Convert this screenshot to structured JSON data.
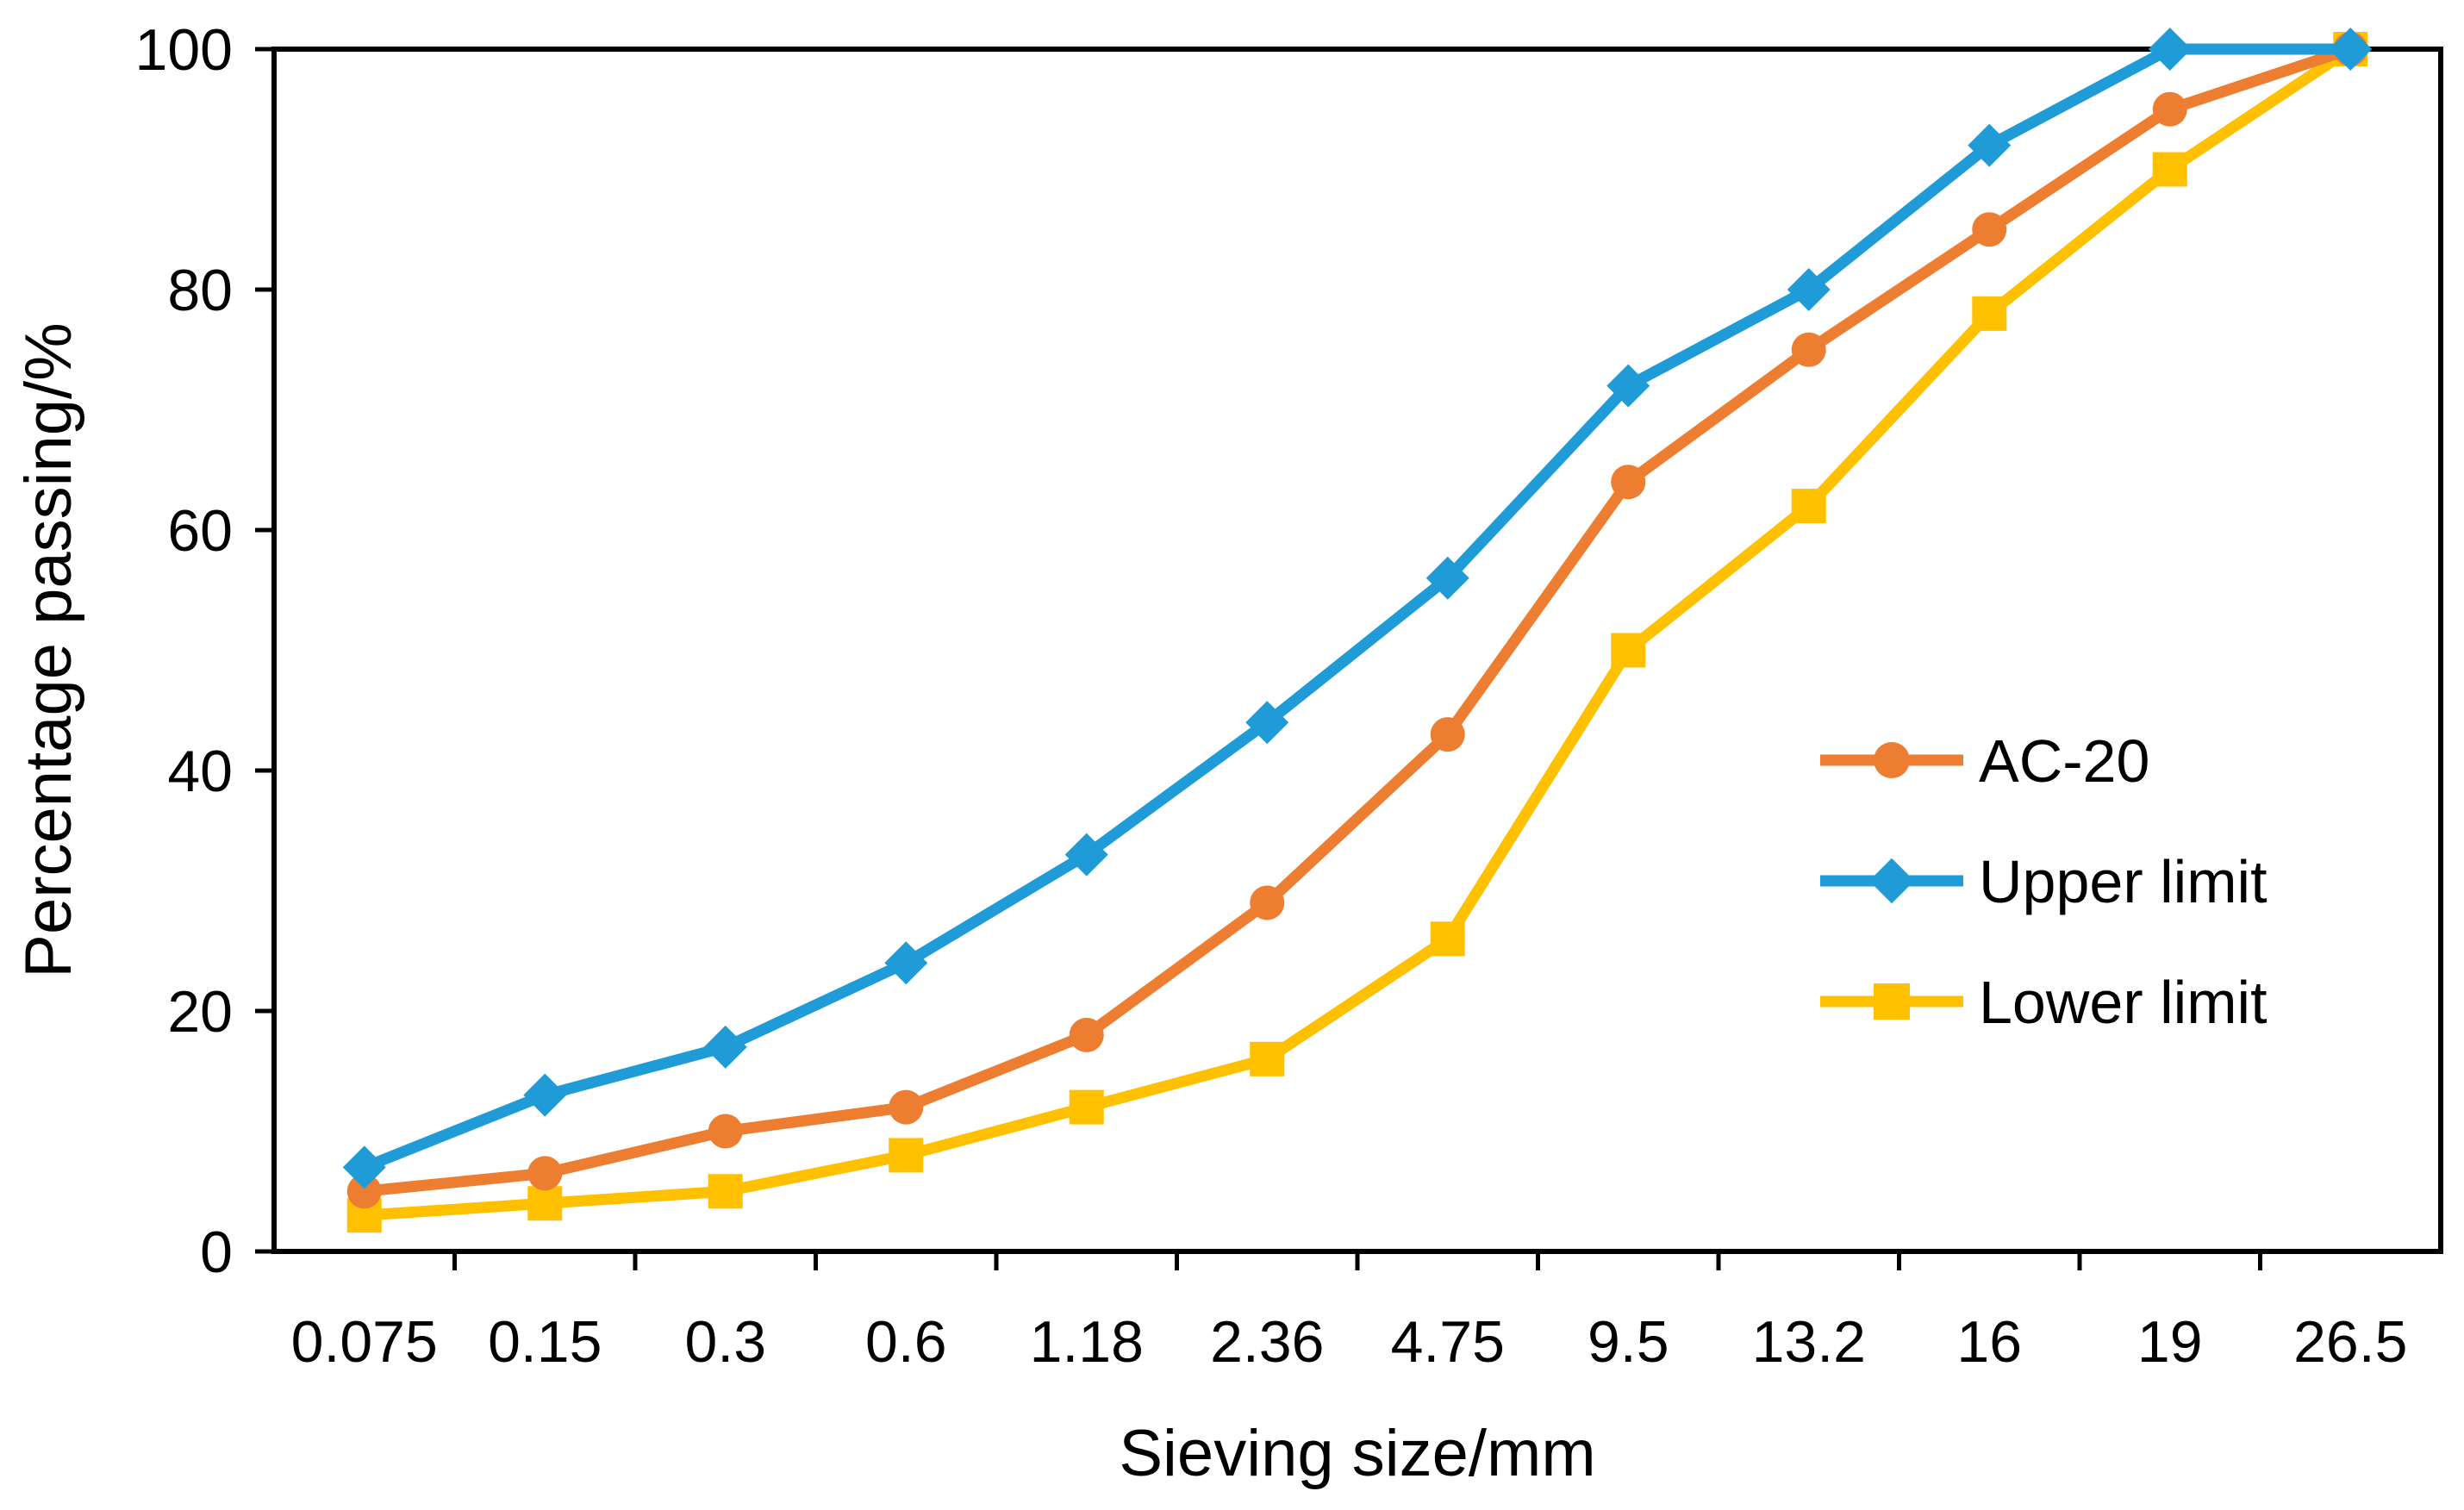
{
  "chart_data": {
    "type": "line",
    "categories": [
      "0.075",
      "0.15",
      "0.3",
      "0.6",
      "1.18",
      "2.36",
      "4.75",
      "9.5",
      "13.2",
      "16",
      "19",
      "26.5"
    ],
    "series": [
      {
        "name": "AC-20",
        "color": "#ED7D31",
        "marker": "circle",
        "values": [
          5,
          6.5,
          10,
          12,
          18,
          29,
          43,
          64,
          75,
          85,
          95,
          100
        ]
      },
      {
        "name": "Upper limit",
        "color": "#1F9BD7",
        "marker": "diamond",
        "values": [
          7,
          13,
          17,
          24,
          33,
          44,
          56,
          72,
          80,
          92,
          100,
          100
        ]
      },
      {
        "name": "Lower limit",
        "color": "#FFC000",
        "marker": "square",
        "values": [
          3,
          4,
          5,
          8,
          12,
          16,
          26,
          50,
          62,
          78,
          90,
          100
        ]
      }
    ],
    "xlabel": "Sieving size/mm",
    "ylabel": "Percentage passing/%",
    "ylim": [
      0,
      100
    ],
    "yticks": [
      "0",
      "20",
      "40",
      "60",
      "80",
      "100"
    ],
    "grid": false,
    "legend_position": "right-center"
  }
}
